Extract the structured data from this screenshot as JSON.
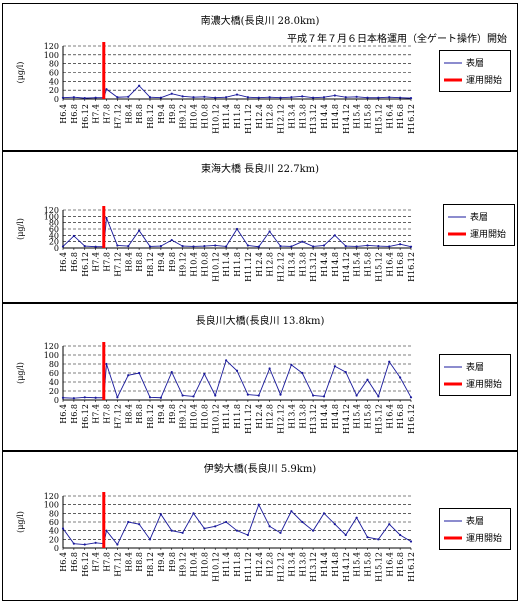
{
  "chart_data": [
    {
      "type": "line",
      "title": "南濃大橋(長良川 28.0km)",
      "note": "平成７年７月６日本格運用（全ゲート操作）開始",
      "ylabel": "(μg/l)",
      "ylim": [
        0,
        120
      ],
      "yticks": [
        0,
        20,
        40,
        60,
        80,
        100,
        120
      ],
      "grid": true,
      "legend_position": "right",
      "legend": [
        "表層",
        "運用開始"
      ],
      "x_tick_labels": [
        "H6.4",
        "H6.8",
        "H6.12",
        "H7.4",
        "H7.8",
        "H7.12",
        "H8.4",
        "H8.8",
        "H8.12",
        "H9.4",
        "H9.8",
        "H9.12",
        "H10.4",
        "H10.8",
        "H10.12",
        "H11.4",
        "H11.8",
        "H11.12",
        "H12.4",
        "H12.8",
        "H12.12",
        "H13.4",
        "H13.8",
        "H13.12",
        "H14.4",
        "H14.8",
        "H14.12",
        "H15.4",
        "H15.8",
        "H15.12",
        "H16.4",
        "H16.8",
        "H16.12"
      ],
      "marker_x": "H7.7",
      "series": [
        {
          "name": "表層",
          "x": [
            "H6.4",
            "H6.8",
            "H6.12",
            "H7.4",
            "H7.7",
            "H7.8",
            "H7.12",
            "H8.4",
            "H8.8",
            "H8.12",
            "H9.4",
            "H9.8",
            "H9.12",
            "H10.4",
            "H10.8",
            "H10.12",
            "H11.4",
            "H11.8",
            "H11.12",
            "H12.4",
            "H12.8",
            "H12.12",
            "H13.4",
            "H13.8",
            "H13.12",
            "H14.4",
            "H14.8",
            "H14.12",
            "H15.4",
            "H15.8",
            "H15.12",
            "H16.4",
            "H16.8",
            "H16.12"
          ],
          "values": [
            3,
            4,
            2,
            3,
            3,
            22,
            4,
            5,
            30,
            4,
            3,
            12,
            6,
            4,
            5,
            3,
            4,
            10,
            4,
            3,
            4,
            3,
            4,
            6,
            3,
            4,
            8,
            4,
            5,
            3,
            3,
            4,
            3,
            2
          ]
        }
      ]
    },
    {
      "type": "line",
      "title": "東海大橋 長良川 22.7km)",
      "ylabel": "(μg/l)",
      "ylim": [
        0,
        120
      ],
      "yticks": [
        0,
        20,
        40,
        60,
        80,
        100,
        120
      ],
      "grid": true,
      "legend_position": "right",
      "legend": [
        "表層",
        "運用開始"
      ],
      "x_tick_labels": [
        "H6.4",
        "H6.8",
        "H6.12",
        "H7.4",
        "H7.8",
        "H7.12",
        "H8.4",
        "H8.8",
        "H8.12",
        "H9.4",
        "H9.8",
        "H9.12",
        "H10.4",
        "H10.8",
        "H10.12",
        "H11.4",
        "H11.8",
        "H11.12",
        "H12.4",
        "H12.8",
        "H12.12",
        "H13.4",
        "H13.8",
        "H13.12",
        "H14.4",
        "H14.8",
        "H14.12",
        "H15.4",
        "H15.8",
        "H15.12",
        "H16.4",
        "H16.8",
        "H16.12"
      ],
      "marker_x": "H7.7",
      "series": [
        {
          "name": "表層",
          "x": [
            "H6.4",
            "H6.8",
            "H6.12",
            "H7.4",
            "H7.7",
            "H7.8",
            "H7.12",
            "H8.4",
            "H8.8",
            "H8.12",
            "H9.4",
            "H9.8",
            "H9.12",
            "H10.4",
            "H10.8",
            "H10.12",
            "H11.4",
            "H11.8",
            "H11.12",
            "H12.4",
            "H12.8",
            "H12.12",
            "H13.4",
            "H13.8",
            "H13.12",
            "H14.4",
            "H14.8",
            "H14.12",
            "H15.4",
            "H15.8",
            "H15.12",
            "H16.4",
            "H16.8",
            "H16.12"
          ],
          "values": [
            5,
            38,
            6,
            4,
            4,
            95,
            8,
            6,
            55,
            5,
            6,
            25,
            6,
            5,
            6,
            8,
            5,
            60,
            8,
            4,
            52,
            6,
            5,
            20,
            5,
            8,
            40,
            6,
            5,
            8,
            6,
            5,
            12,
            4
          ]
        }
      ]
    },
    {
      "type": "line",
      "title": "長良川大橋(長良川 13.8km)",
      "ylabel": "(μg/l)",
      "ylim": [
        0,
        120
      ],
      "yticks": [
        0,
        20,
        40,
        60,
        80,
        100,
        120
      ],
      "grid": true,
      "legend_position": "right",
      "legend": [
        "表層",
        "運用開始"
      ],
      "x_tick_labels": [
        "H6.4",
        "H6.8",
        "H6.12",
        "H7.4",
        "H7.8",
        "H7.12",
        "H8.4",
        "H8.8",
        "H8.12",
        "H9.4",
        "H9.8",
        "H9.12",
        "H10.4",
        "H10.8",
        "H10.12",
        "H11.4",
        "H11.8",
        "H11.12",
        "H12.4",
        "H12.8",
        "H12.12",
        "H13.4",
        "H13.8",
        "H13.12",
        "H14.4",
        "H14.8",
        "H14.12",
        "H15.4",
        "H15.8",
        "H15.12",
        "H16.4",
        "H16.8",
        "H16.12"
      ],
      "marker_x": "H7.7",
      "series": [
        {
          "name": "表層",
          "x": [
            "H6.4",
            "H6.8",
            "H6.12",
            "H7.4",
            "H7.7",
            "H7.8",
            "H7.12",
            "H8.4",
            "H8.8",
            "H8.12",
            "H9.4",
            "H9.8",
            "H9.12",
            "H10.4",
            "H10.8",
            "H10.12",
            "H11.4",
            "H11.8",
            "H11.12",
            "H12.4",
            "H12.8",
            "H12.12",
            "H13.4",
            "H13.8",
            "H13.12",
            "H14.4",
            "H14.8",
            "H14.12",
            "H15.4",
            "H15.8",
            "H15.12",
            "H16.4",
            "H16.8",
            "H16.12"
          ],
          "values": [
            5,
            4,
            6,
            5,
            5,
            80,
            6,
            55,
            60,
            6,
            5,
            62,
            10,
            8,
            58,
            10,
            88,
            65,
            12,
            10,
            70,
            12,
            78,
            60,
            10,
            8,
            75,
            62,
            10,
            45,
            8,
            85,
            50,
            6
          ]
        }
      ]
    },
    {
      "type": "line",
      "title": "伊勢大橋(長良川 5.9km)",
      "ylabel": "(μg/l)",
      "ylim": [
        0,
        120
      ],
      "yticks": [
        0,
        20,
        40,
        60,
        80,
        100,
        120
      ],
      "grid": true,
      "legend_position": "right",
      "legend": [
        "表層",
        "運用開始"
      ],
      "x_tick_labels": [
        "H6.4",
        "H6.8",
        "H6.12",
        "H7.4",
        "H7.8",
        "H7.12",
        "H8.4",
        "H8.8",
        "H8.12",
        "H9.4",
        "H9.8",
        "H9.12",
        "H10.4",
        "H10.8",
        "H10.12",
        "H11.4",
        "H11.8",
        "H11.12",
        "H12.4",
        "H12.8",
        "H12.12",
        "H13.4",
        "H13.8",
        "H13.12",
        "H14.4",
        "H14.8",
        "H14.12",
        "H15.4",
        "H15.8",
        "H15.12",
        "H16.4",
        "H16.8",
        "H16.12"
      ],
      "marker_x": "H7.7",
      "series": [
        {
          "name": "表層",
          "x": [
            "H6.4",
            "H6.8",
            "H6.12",
            "H7.4",
            "H7.7",
            "H7.8",
            "H7.12",
            "H8.4",
            "H8.8",
            "H8.12",
            "H9.4",
            "H9.8",
            "H9.12",
            "H10.4",
            "H10.8",
            "H10.12",
            "H11.4",
            "H11.8",
            "H11.12",
            "H12.4",
            "H12.8",
            "H12.12",
            "H13.4",
            "H13.8",
            "H13.12",
            "H14.4",
            "H14.8",
            "H14.12",
            "H15.4",
            "H15.8",
            "H15.12",
            "H16.4",
            "H16.8",
            "H16.12"
          ],
          "values": [
            45,
            10,
            8,
            12,
            10,
            40,
            8,
            60,
            55,
            20,
            78,
            40,
            35,
            80,
            45,
            50,
            60,
            40,
            30,
            100,
            50,
            35,
            85,
            60,
            40,
            80,
            55,
            30,
            70,
            25,
            20,
            55,
            30,
            15
          ]
        }
      ]
    }
  ]
}
